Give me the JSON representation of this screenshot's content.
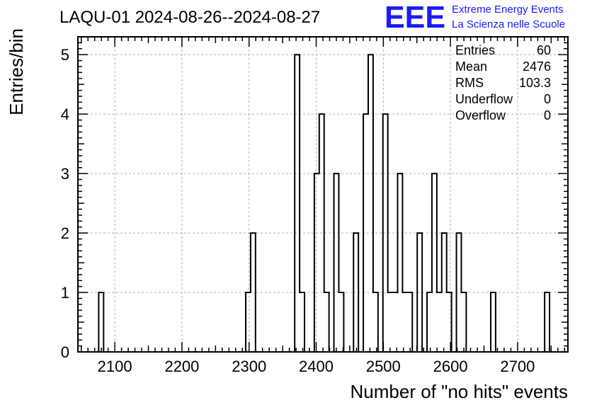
{
  "chart_data": {
    "type": "bar",
    "title": "LAQU-01 2024-08-26--2024-08-27",
    "xlabel": "Number of \"no hits\" events",
    "ylabel": "Entries/bin",
    "xlim": [
      2045,
      2775
    ],
    "ylim": [
      0,
      5.3
    ],
    "bin_width": 7.3,
    "x_ticks": [
      2100,
      2200,
      2300,
      2400,
      2500,
      2600,
      2700
    ],
    "y_ticks": [
      0,
      1,
      2,
      3,
      4,
      5
    ],
    "grid": true,
    "bins": [
      {
        "x": 2076.0,
        "count": 1
      },
      {
        "x": 2295.0,
        "count": 1
      },
      {
        "x": 2302.3,
        "count": 2
      },
      {
        "x": 2368.0,
        "count": 5
      },
      {
        "x": 2375.3,
        "count": 1
      },
      {
        "x": 2397.2,
        "count": 3
      },
      {
        "x": 2404.5,
        "count": 4
      },
      {
        "x": 2411.8,
        "count": 1
      },
      {
        "x": 2426.4,
        "count": 3
      },
      {
        "x": 2433.7,
        "count": 1
      },
      {
        "x": 2455.6,
        "count": 2
      },
      {
        "x": 2470.2,
        "count": 4
      },
      {
        "x": 2477.5,
        "count": 5
      },
      {
        "x": 2484.8,
        "count": 1
      },
      {
        "x": 2499.4,
        "count": 4
      },
      {
        "x": 2506.7,
        "count": 1
      },
      {
        "x": 2514.0,
        "count": 1
      },
      {
        "x": 2521.3,
        "count": 3
      },
      {
        "x": 2528.6,
        "count": 1
      },
      {
        "x": 2535.9,
        "count": 1
      },
      {
        "x": 2550.5,
        "count": 2
      },
      {
        "x": 2565.1,
        "count": 1
      },
      {
        "x": 2572.4,
        "count": 3
      },
      {
        "x": 2579.7,
        "count": 1
      },
      {
        "x": 2587.0,
        "count": 2
      },
      {
        "x": 2594.3,
        "count": 1
      },
      {
        "x": 2608.9,
        "count": 2
      },
      {
        "x": 2616.2,
        "count": 1
      },
      {
        "x": 2660.0,
        "count": 1
      },
      {
        "x": 2740.3,
        "count": 1
      }
    ],
    "stats": [
      {
        "label": "Entries",
        "value": "60"
      },
      {
        "label": "Mean",
        "value": "2476"
      },
      {
        "label": "RMS",
        "value": "103.3"
      },
      {
        "label": "Underflow",
        "value": "0"
      },
      {
        "label": "Overflow",
        "value": "0"
      }
    ]
  },
  "logo": {
    "mark": "EEE",
    "line1": "Extreme Energy Events",
    "line2": "La Scienza nelle Scuole",
    "color": "#1a1aff"
  }
}
